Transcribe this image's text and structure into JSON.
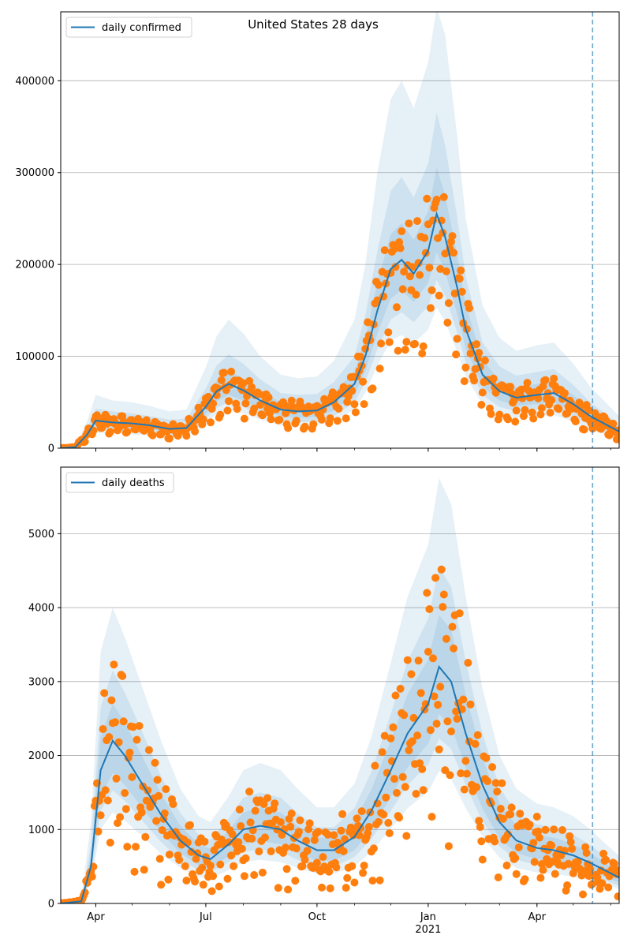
{
  "figure_title": "United States 28 days",
  "colors": {
    "model_line": "#1f77b4",
    "observed_points": "#ff7f0e",
    "band": "#1f77b4",
    "forecast_marker": "#1f77b4",
    "grid": "#b0b0b0"
  },
  "x_ticks": [
    {
      "date": "2020-04-01",
      "label": "Apr"
    },
    {
      "date": "2020-07-01",
      "label": "Jul"
    },
    {
      "date": "2020-10-01",
      "label": "Oct"
    },
    {
      "date": "2021-01-01",
      "label": "Jan",
      "sublabel": "2021"
    },
    {
      "date": "2021-04-01",
      "label": "Apr"
    }
  ],
  "chart_data": [
    {
      "type": "line",
      "legend": "daily confirmed",
      "legend_position": "top-left",
      "x_range": [
        "2020-03-03",
        "2021-06-08"
      ],
      "forecast_start": "2021-05-17",
      "ylim": [
        0,
        475000
      ],
      "yticks": [
        0,
        100000,
        200000,
        300000,
        400000
      ],
      "grid": "horizontal",
      "model": {
        "dates": [
          "2020-03-03",
          "2020-03-15",
          "2020-03-25",
          "2020-04-01",
          "2020-04-15",
          "2020-05-01",
          "2020-05-15",
          "2020-06-01",
          "2020-06-15",
          "2020-07-01",
          "2020-07-10",
          "2020-07-20",
          "2020-08-01",
          "2020-08-15",
          "2020-09-01",
          "2020-09-15",
          "2020-10-01",
          "2020-10-15",
          "2020-11-01",
          "2020-11-10",
          "2020-11-20",
          "2020-12-01",
          "2020-12-10",
          "2020-12-20",
          "2021-01-01",
          "2021-01-08",
          "2021-01-15",
          "2021-01-25",
          "2021-02-01",
          "2021-02-15",
          "2021-03-01",
          "2021-03-15",
          "2021-04-01",
          "2021-04-15",
          "2021-05-01",
          "2021-05-15",
          "2021-06-08"
        ],
        "values": [
          0,
          1000,
          15000,
          30000,
          28000,
          27000,
          25000,
          21000,
          22000,
          45000,
          62000,
          70000,
          63000,
          52000,
          42000,
          40000,
          41000,
          50000,
          70000,
          100000,
          150000,
          195000,
          205000,
          190000,
          215000,
          255000,
          230000,
          175000,
          130000,
          80000,
          62000,
          55000,
          58000,
          60000,
          48000,
          35000,
          18000
        ]
      },
      "bands": [
        {
          "label": "outer",
          "lower": [
            0,
            500,
            8000,
            17000,
            16000,
            15000,
            14000,
            12000,
            13000,
            27000,
            37000,
            42000,
            38000,
            31000,
            25000,
            24000,
            25000,
            30000,
            42000,
            60000,
            90000,
            117000,
            123000,
            114000,
            129000,
            153000,
            138000,
            105000,
            78000,
            48000,
            37000,
            33000,
            35000,
            36000,
            29000,
            21000,
            10000
          ],
          "upper": [
            0,
            2500,
            30000,
            58000,
            52000,
            50000,
            46000,
            40000,
            42000,
            88000,
            122000,
            140000,
            125000,
            100000,
            80000,
            76000,
            78000,
            95000,
            140000,
            200000,
            300000,
            380000,
            400000,
            370000,
            420000,
            480000,
            450000,
            340000,
            250000,
            155000,
            120000,
            106000,
            112000,
            115000,
            92000,
            67000,
            35000
          ]
        },
        {
          "label": "middle",
          "lower": [
            0,
            700,
            10000,
            20000,
            19000,
            18000,
            17000,
            14000,
            15000,
            32000,
            44000,
            50000,
            45000,
            37000,
            30000,
            28000,
            29000,
            35000,
            50000,
            72000,
            108000,
            140000,
            148000,
            137000,
            155000,
            183000,
            166000,
            126000,
            94000,
            58000,
            45000,
            40000,
            42000,
            44000,
            35000,
            25000,
            12000
          ],
          "upper": [
            0,
            1800,
            22000,
            43000,
            40000,
            38000,
            35000,
            31000,
            32000,
            65000,
            90000,
            102000,
            92000,
            75000,
            60000,
            58000,
            59000,
            72000,
            100000,
            145000,
            215000,
            280000,
            295000,
            273000,
            310000,
            365000,
            330000,
            252000,
            187000,
            115000,
            89000,
            79000,
            83000,
            86000,
            69000,
            50000,
            26000
          ]
        },
        {
          "label": "inner",
          "lower": [
            0,
            850,
            12500,
            25000,
            23000,
            22000,
            21000,
            17000,
            18000,
            37000,
            51000,
            58000,
            52000,
            43000,
            35000,
            33000,
            34000,
            41000,
            58000,
            84000,
            125000,
            163000,
            172000,
            159000,
            180000,
            213000,
            193000,
            146000,
            109000,
            67000,
            52000,
            46000,
            48000,
            50000,
            40000,
            29000,
            15000
          ],
          "upper": [
            0,
            1300,
            18000,
            36000,
            34000,
            33000,
            30000,
            25000,
            27000,
            54000,
            74000,
            84000,
            76000,
            62000,
            50000,
            48000,
            49000,
            60000,
            84000,
            120000,
            180000,
            233000,
            245000,
            227000,
            258000,
            305000,
            276000,
            210000,
            156000,
            96000,
            74000,
            66000,
            70000,
            72000,
            58000,
            42000,
            22000
          ]
        }
      ],
      "observed_noise": 0.16
    },
    {
      "type": "line",
      "legend": "daily deaths",
      "legend_position": "top-left",
      "x_range": [
        "2020-03-03",
        "2021-06-08"
      ],
      "forecast_start": "2021-05-17",
      "ylim": [
        0,
        5900
      ],
      "yticks": [
        0,
        1000,
        2000,
        3000,
        4000,
        5000
      ],
      "grid": "horizontal",
      "model": {
        "dates": [
          "2020-03-03",
          "2020-03-20",
          "2020-03-28",
          "2020-04-05",
          "2020-04-15",
          "2020-04-25",
          "2020-05-10",
          "2020-05-25",
          "2020-06-10",
          "2020-06-25",
          "2020-07-05",
          "2020-07-20",
          "2020-08-01",
          "2020-08-15",
          "2020-09-01",
          "2020-09-15",
          "2020-10-01",
          "2020-10-15",
          "2020-11-01",
          "2020-11-15",
          "2020-12-01",
          "2020-12-15",
          "2021-01-01",
          "2021-01-10",
          "2021-01-20",
          "2021-02-01",
          "2021-02-15",
          "2021-03-01",
          "2021-03-15",
          "2021-04-01",
          "2021-04-15",
          "2021-05-01",
          "2021-05-15",
          "2021-06-08"
        ],
        "values": [
          0,
          30,
          500,
          1800,
          2200,
          2000,
          1600,
          1200,
          850,
          650,
          600,
          800,
          1000,
          1050,
          1000,
          850,
          720,
          720,
          900,
          1250,
          1800,
          2300,
          2700,
          3200,
          3000,
          2300,
          1600,
          1100,
          850,
          750,
          720,
          650,
          550,
          350
        ]
      },
      "bands": [
        {
          "label": "outer",
          "lower": [
            0,
            15,
            280,
            1000,
            1230,
            1120,
            900,
            670,
            480,
            360,
            340,
            450,
            560,
            590,
            560,
            480,
            400,
            400,
            500,
            700,
            1010,
            1290,
            1510,
            1790,
            1680,
            1290,
            900,
            620,
            480,
            420,
            400,
            360,
            310,
            200
          ],
          "upper": [
            0,
            70,
            1100,
            3400,
            4000,
            3600,
            2900,
            2200,
            1550,
            1180,
            1100,
            1450,
            1800,
            1900,
            1800,
            1550,
            1300,
            1300,
            1620,
            2250,
            3250,
            4150,
            4850,
            5750,
            5400,
            4150,
            2900,
            2000,
            1550,
            1350,
            1300,
            1180,
            1000,
            640
          ]
        },
        {
          "label": "middle",
          "lower": [
            0,
            20,
            350,
            1250,
            1530,
            1390,
            1110,
            830,
            590,
            450,
            420,
            560,
            700,
            730,
            700,
            590,
            500,
            500,
            630,
            870,
            1250,
            1600,
            1880,
            2230,
            2090,
            1600,
            1110,
            770,
            590,
            520,
            500,
            450,
            380,
            240
          ],
          "upper": [
            0,
            50,
            800,
            2650,
            3150,
            2850,
            2300,
            1720,
            1220,
            930,
            860,
            1150,
            1430,
            1500,
            1430,
            1220,
            1030,
            1030,
            1290,
            1780,
            2560,
            3280,
            3850,
            4550,
            4280,
            3280,
            2290,
            1570,
            1220,
            1070,
            1030,
            930,
            790,
            500
          ]
        },
        {
          "label": "inner",
          "lower": [
            0,
            25,
            400,
            1450,
            1760,
            1600,
            1280,
            960,
            680,
            520,
            480,
            640,
            800,
            840,
            800,
            680,
            580,
            580,
            720,
            1000,
            1440,
            1840,
            2160,
            2560,
            2400,
            1840,
            1280,
            880,
            680,
            600,
            580,
            520,
            440,
            280
          ],
          "upper": [
            0,
            40,
            650,
            2250,
            2700,
            2450,
            1970,
            1480,
            1050,
            800,
            740,
            990,
            1230,
            1300,
            1230,
            1050,
            890,
            890,
            1110,
            1540,
            2200,
            2830,
            3300,
            3900,
            3700,
            2830,
            1970,
            1350,
            1050,
            920,
            890,
            800,
            680,
            430
          ]
        }
      ],
      "observed_noise": 0.45
    }
  ]
}
